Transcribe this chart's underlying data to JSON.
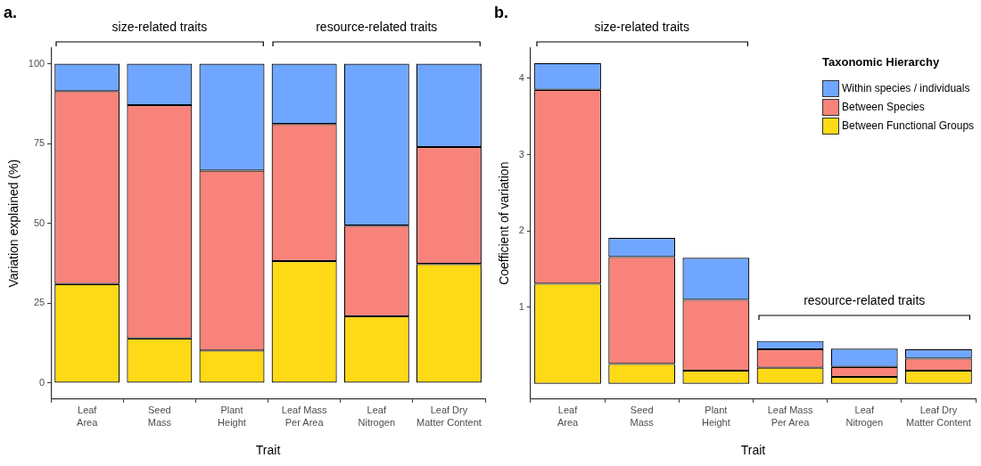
{
  "chart_data": [
    {
      "type": "bar",
      "title": "a.",
      "xlabel": "Trait",
      "ylabel": "Variation explained (%)",
      "categories": [
        "Leaf\nArea",
        "Seed\nMass",
        "Plant\nHeight",
        "Leaf Mass\nPer Area",
        "Leaf\nNitrogen",
        "Leaf Dry\nMatter Content"
      ],
      "stacked": true,
      "grid": false,
      "legend": false,
      "series": [
        {
          "color": "#fdd916",
          "values": [
            31.0,
            14.0,
            10.2,
            38.2,
            20.9,
            37.3
          ]
        },
        {
          "color": "#f8837a",
          "values": [
            60.4,
            73.0,
            56.3,
            42.9,
            28.4,
            36.6
          ]
        },
        {
          "color": "#6fa6ff",
          "values": [
            8.6,
            13.0,
            33.5,
            18.9,
            50.7,
            26.1
          ]
        }
      ],
      "ylim": [
        -5,
        105
      ],
      "yticks": [
        0,
        25,
        50,
        75,
        100
      ],
      "annotations": [
        "size-related traits",
        "resource-related traits"
      ]
    },
    {
      "type": "bar",
      "title": "b.",
      "xlabel": "Trait",
      "ylabel": "Coefficient of variation",
      "categories": [
        "Leaf\nArea",
        "Seed\nMass",
        "Plant\nHeight",
        "Leaf Mass\nPer Area",
        "Leaf\nNitrogen",
        "Leaf Dry\nMatter Content"
      ],
      "stacked": true,
      "grid": false,
      "legend": "top right",
      "legend_title": "Taxonomic Hierarchy",
      "series": [
        {
          "name": "Between Functional Groups",
          "color": "#fdd916",
          "values": [
            1.31,
            0.26,
            0.17,
            0.21,
            0.09,
            0.17
          ]
        },
        {
          "name": "Between Species",
          "color": "#f8837a",
          "values": [
            2.54,
            1.4,
            0.93,
            0.24,
            0.13,
            0.16
          ]
        },
        {
          "name": "Within species / individuals",
          "color": "#6fa6ff",
          "values": [
            0.35,
            0.25,
            0.55,
            0.11,
            0.24,
            0.12
          ]
        }
      ],
      "ylim": [
        -0.2,
        4.4
      ],
      "yticks": [
        1,
        2,
        3,
        4
      ],
      "annotations": [
        "size-related traits",
        "resource-related traits"
      ]
    }
  ]
}
